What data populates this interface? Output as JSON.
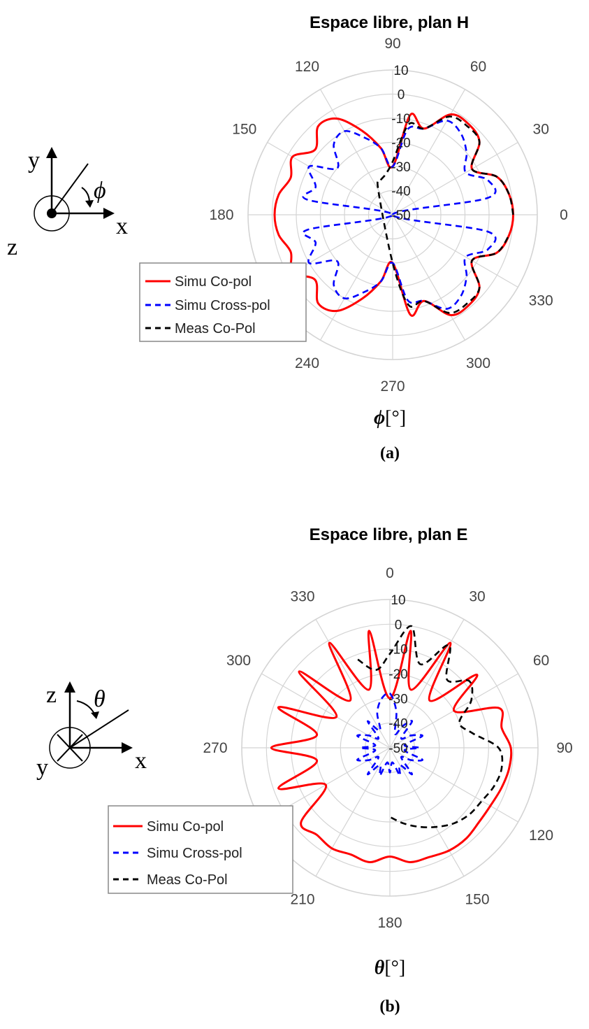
{
  "figures": [
    {
      "caption_letter": "a",
      "axis_symbol": "ϕ",
      "axis_unit": "[°]",
      "coords": {
        "up": "y",
        "right": "x",
        "out": "z",
        "angle": "ϕ"
      }
    },
    {
      "caption_letter": "b",
      "axis_symbol": "θ",
      "axis_unit": "[°]",
      "coords": {
        "up": "z",
        "right": "x",
        "out": "y",
        "angle": "θ"
      }
    }
  ],
  "chart_data": [
    {
      "type": "polar",
      "title": "Espace libre, plan H",
      "angle_unit": "deg",
      "angle_convention": "counterclockwise from right (0 at right, 90 at top)",
      "angular_ticks": [
        "90",
        "60",
        "30",
        "0",
        "330",
        "300",
        "270",
        "240",
        "210",
        "180",
        "150",
        "120"
      ],
      "radial_ticks": [
        "10",
        "0",
        "-10",
        "-20",
        "-30",
        "-40",
        "-50"
      ],
      "rlim": [
        -50,
        10
      ],
      "grid": true,
      "legend_position": "lower-left",
      "colors": {
        "Simu Co-pol": "#ff0000",
        "Simu Cross-pol": "#0000ff",
        "Meas Co-Pol": "#000000"
      },
      "series": [
        {
          "name": "Simu Co-pol",
          "style": "solid",
          "angles": [
            0,
            10,
            20,
            30,
            40,
            50,
            60,
            70,
            80,
            90,
            100,
            110,
            120,
            130,
            140,
            150,
            160,
            170,
            180,
            190,
            200,
            210,
            220,
            230,
            240,
            250,
            260,
            270,
            280,
            290,
            300,
            310,
            320,
            330,
            340,
            350
          ],
          "values": [
            0,
            -1,
            -4,
            -12,
            -3,
            -1,
            -2,
            -12,
            -8,
            -30,
            -22,
            -13,
            -4,
            -2,
            -8,
            -2,
            -5,
            -2,
            -1,
            -2,
            -5,
            -2,
            -8,
            -2,
            -4,
            -13,
            -22,
            -30,
            -8,
            -12,
            -2,
            -1,
            -3,
            -12,
            -4,
            -1
          ]
        },
        {
          "name": "Simu Cross-pol",
          "style": "dashed",
          "angles": [
            0,
            10,
            20,
            30,
            40,
            50,
            60,
            70,
            80,
            90,
            100,
            110,
            120,
            130,
            140,
            150,
            160,
            170,
            180,
            190,
            200,
            210,
            220,
            230,
            240,
            250,
            260,
            270,
            280,
            290,
            300,
            310,
            320,
            330,
            340,
            350
          ],
          "values": [
            -50,
            -10,
            -8,
            -15,
            -10,
            -6,
            -5,
            -12,
            -14,
            -30,
            -22,
            -16,
            -10,
            -12,
            -20,
            -10,
            -16,
            -14,
            -50,
            -14,
            -16,
            -10,
            -20,
            -12,
            -10,
            -16,
            -22,
            -30,
            -14,
            -12,
            -5,
            -6,
            -10,
            -15,
            -8,
            -10
          ]
        },
        {
          "name": "Meas Co-Pol",
          "style": "dashed",
          "angles": [
            0,
            10,
            20,
            30,
            40,
            50,
            60,
            70,
            80,
            90,
            100,
            110,
            120,
            270,
            280,
            290,
            300,
            310,
            320,
            330,
            340,
            350
          ],
          "values": [
            0,
            -1,
            -4,
            -12,
            -3,
            -2,
            -3,
            -12,
            -12,
            -28,
            -33,
            -35,
            -38,
            -30,
            -12,
            -12,
            -3,
            -2,
            -3,
            -12,
            -4,
            -1
          ]
        }
      ]
    },
    {
      "type": "polar",
      "title": "Espace libre, plan E",
      "angle_unit": "deg",
      "angle_convention": "clockwise from top (0 at top, 90 at right)",
      "angular_ticks": [
        "0",
        "30",
        "60",
        "90",
        "120",
        "150",
        "180",
        "210",
        "240",
        "270",
        "300",
        "330"
      ],
      "radial_ticks": [
        "10",
        "0",
        "-10",
        "-20",
        "-30",
        "-40",
        "-50"
      ],
      "rlim": [
        -50,
        10
      ],
      "grid": true,
      "legend_position": "lower-left",
      "colors": {
        "Simu Co-pol": "#ff0000",
        "Simu Cross-pol": "#0000ff",
        "Meas Co-Pol": "#000000"
      },
      "series": [
        {
          "name": "Simu Co-pol",
          "style": "solid",
          "angles": [
            0,
            10,
            20,
            30,
            40,
            50,
            60,
            70,
            80,
            90,
            100,
            110,
            120,
            130,
            140,
            150,
            160,
            170,
            180,
            190,
            200,
            210,
            220,
            230,
            240,
            250,
            260,
            270,
            280,
            290,
            300,
            310,
            320,
            330,
            340,
            350
          ],
          "values": [
            -30,
            -2,
            -25,
            -1,
            -25,
            -4,
            -20,
            -3,
            -4,
            -1,
            -1,
            -2,
            -3,
            -3,
            -2,
            -2,
            -3,
            -3,
            -6,
            -3,
            -4,
            -3,
            -4,
            -3,
            -20,
            -2,
            -20,
            -2,
            -20,
            -2,
            -25,
            -2,
            -25,
            -1,
            -25,
            -2
          ]
        },
        {
          "name": "Simu Cross-pol",
          "style": "dashed",
          "angles": [
            0,
            10,
            20,
            30,
            40,
            50,
            60,
            70,
            80,
            90,
            100,
            110,
            120,
            130,
            140,
            150,
            160,
            170,
            180,
            190,
            200,
            210,
            220,
            230,
            240,
            250,
            260,
            270,
            280,
            290,
            300,
            310,
            320,
            330,
            340,
            350
          ],
          "values": [
            -28,
            -35,
            -44,
            -40,
            -36,
            -44,
            -40,
            -36,
            -44,
            -38,
            -44,
            -36,
            -40,
            -44,
            -36,
            -42,
            -38,
            -44,
            -40,
            -44,
            -38,
            -42,
            -36,
            -44,
            -40,
            -36,
            -44,
            -38,
            -44,
            -36,
            -40,
            -44,
            -36,
            -42,
            -35,
            -30
          ]
        },
        {
          "name": "Meas Co-Pol",
          "style": "dashed",
          "angles": [
            -20,
            -10,
            0,
            10,
            20,
            30,
            40,
            50,
            60,
            70,
            80,
            90,
            100,
            110,
            120,
            130,
            140,
            150,
            160,
            170,
            180
          ],
          "values": [
            -12,
            -18,
            -12,
            0,
            -14,
            -2,
            -14,
            -8,
            -12,
            -20,
            -16,
            -6,
            -4,
            -5,
            -7,
            -8,
            -10,
            -13,
            -16,
            -19,
            -22
          ]
        }
      ]
    }
  ]
}
